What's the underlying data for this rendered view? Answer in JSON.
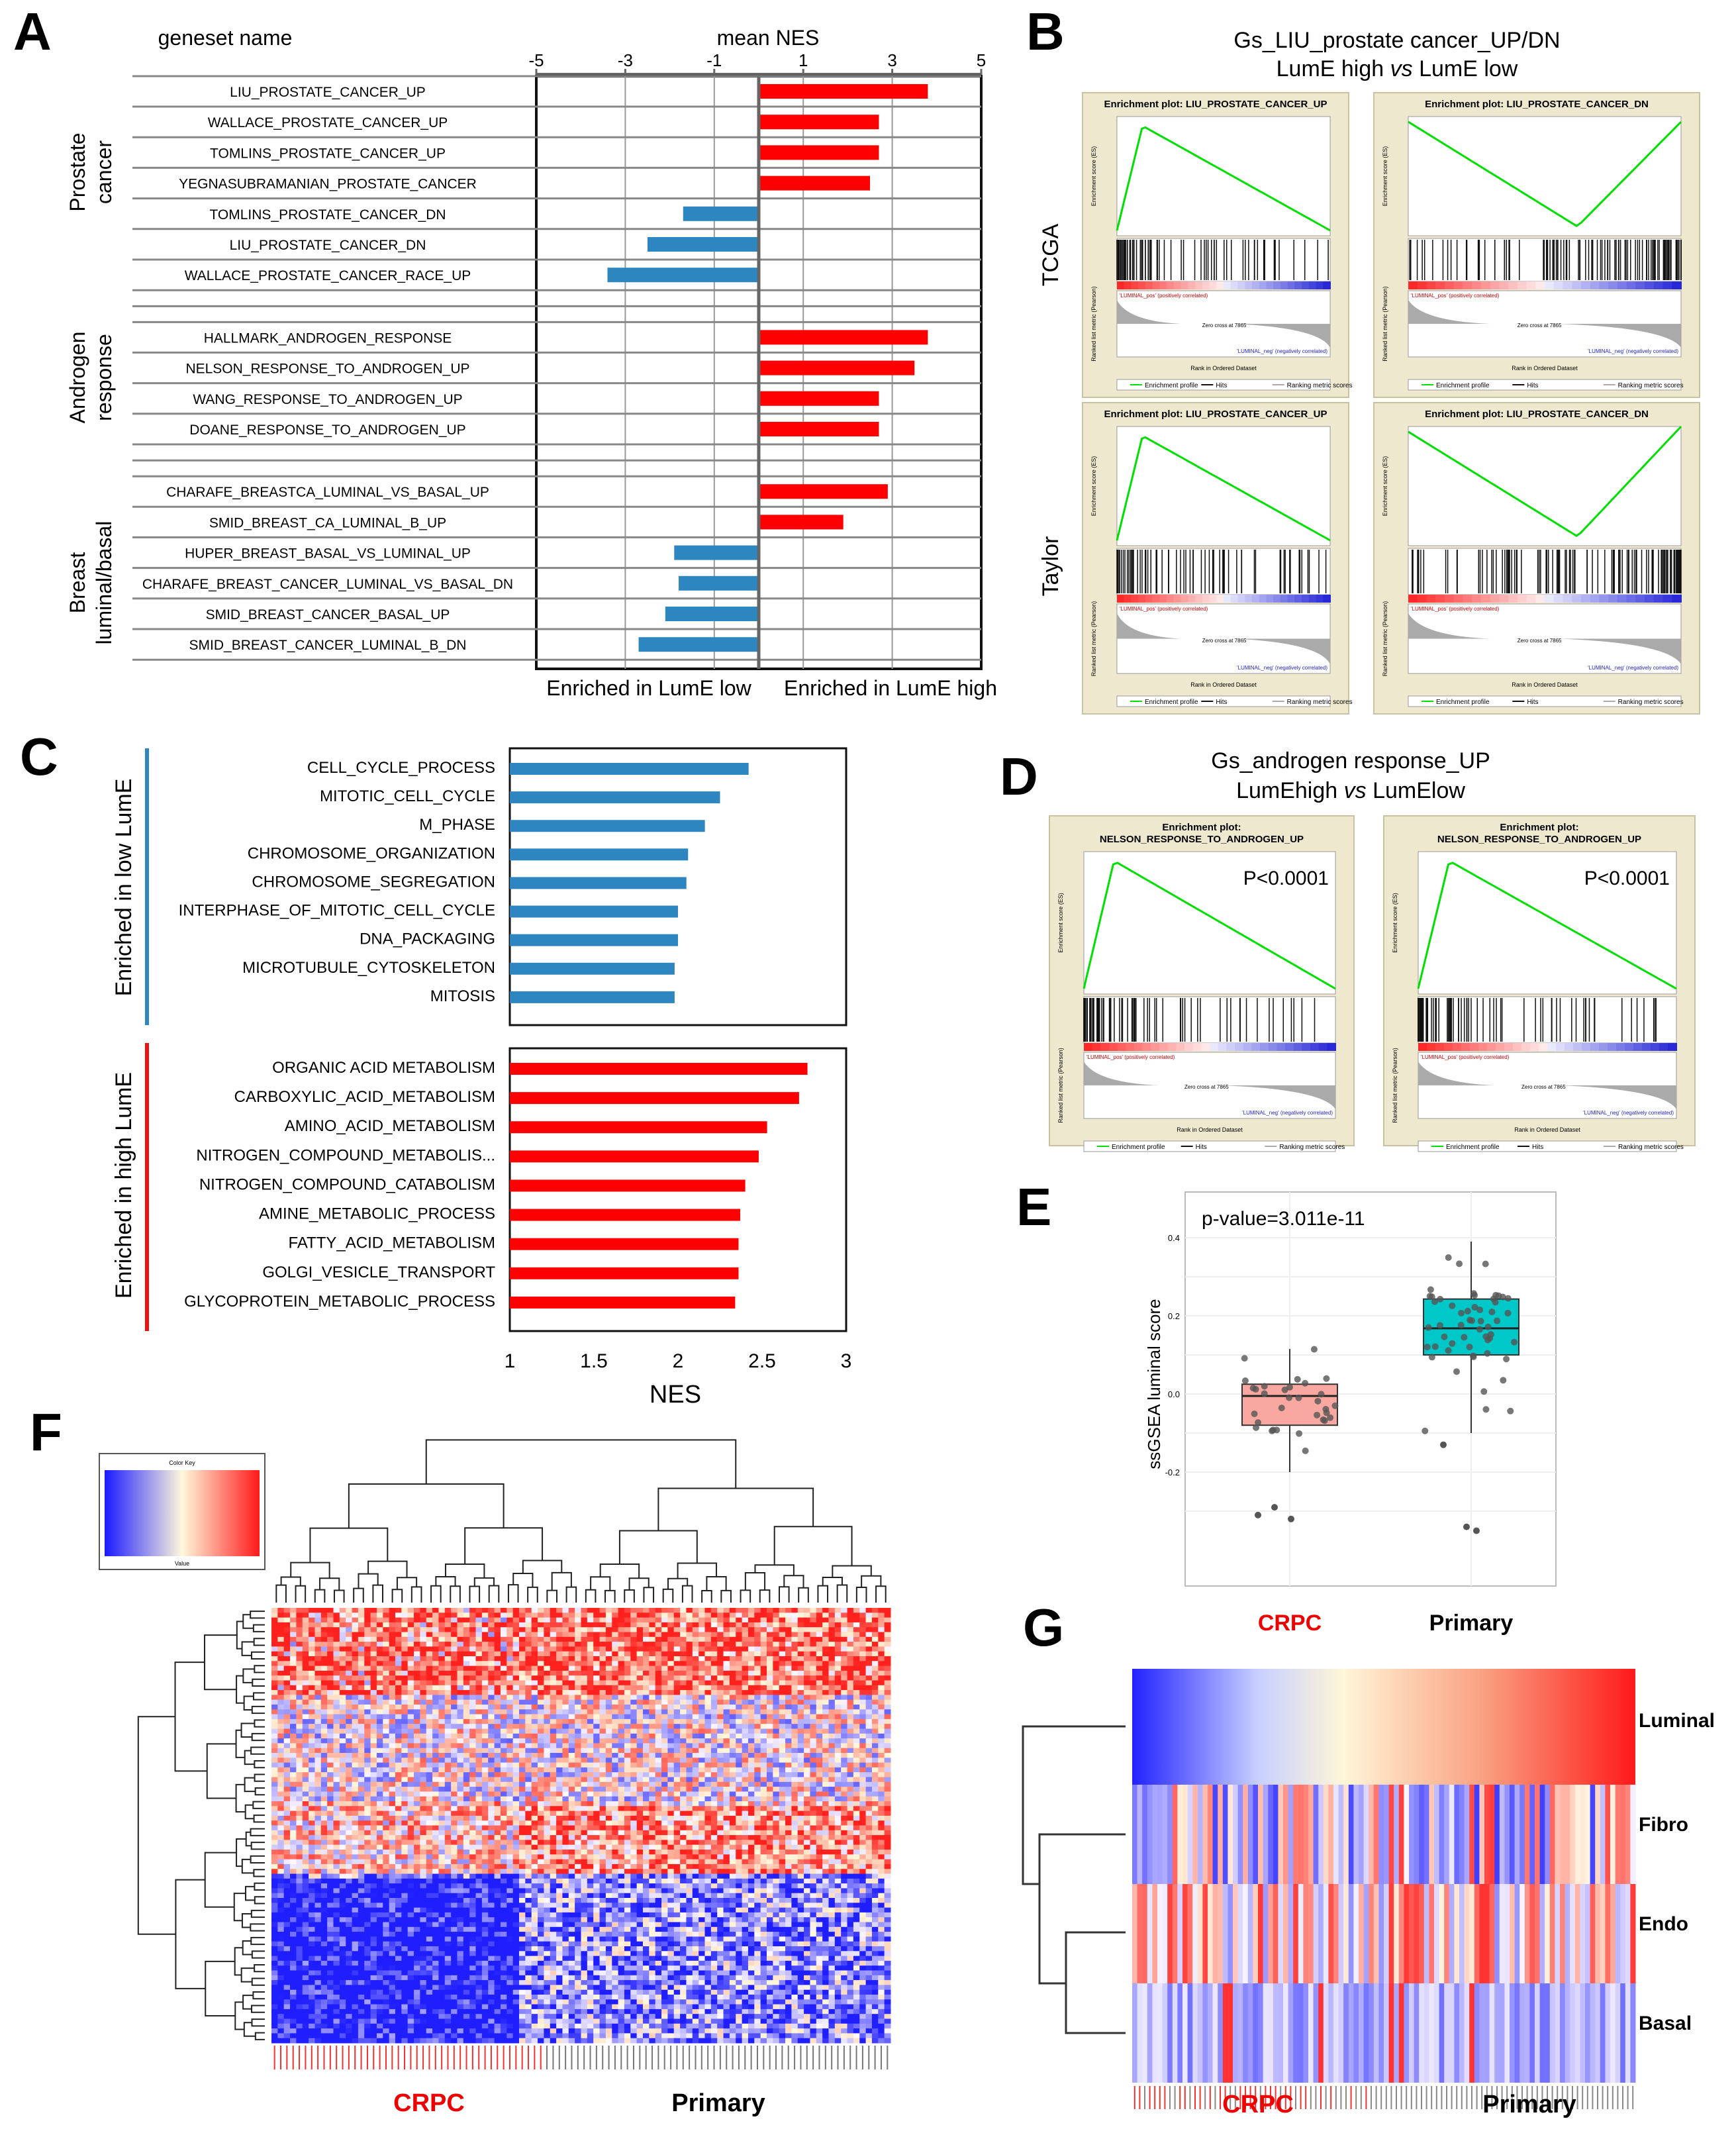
{
  "panel_letters": {
    "A": "A",
    "B": "B",
    "C": "C",
    "D": "D",
    "E": "E",
    "F": "F",
    "G": "G"
  },
  "colors": {
    "up": "#ff0000",
    "down": "#2e86c1",
    "green": "#00e000",
    "blue_hm": "#1f1fff",
    "red_hm": "#ff2020",
    "teal": "#00c8c8",
    "pink": "#f8a8a0",
    "crpc_red": "#ee0000"
  },
  "panelA": {
    "header_geneset": "geneset name",
    "header_nes": "mean NES",
    "group_labels": [
      {
        "line1": "Prostate",
        "line2": "cancer"
      },
      {
        "line1": "Androgen",
        "line2": "response"
      },
      {
        "line1": "Breast",
        "line2": "luminal/basal"
      }
    ],
    "foot_left": "Enriched in LumE low",
    "foot_right": "Enriched in LumE high"
  },
  "panelB": {
    "title1": "Gs_LIU_prostate cancer_UP/DN",
    "title2_a": "LumE high ",
    "title2_vs": "vs",
    "title2_b": " LumE low",
    "row_labels": [
      "TCGA",
      "Taylor"
    ],
    "plot_titles": [
      "Enrichment plot: LIU_PROSTATE_CANCER_UP",
      "Enrichment plot: LIU_PROSTATE_CANCER_DN"
    ],
    "legend": [
      "Enrichment profile",
      "Hits",
      "Ranking metric scores"
    ],
    "xlabel": "Rank in Ordered Dataset",
    "ylabel_es": "Enrichment score (ES)",
    "ylabel_rank": "Ranked list metric (Pearson)",
    "pos_label": "'LUMINAL_pos' (positively correlated)",
    "neg_label": "'LUMINAL_neg' (negatively correlated)",
    "zero_cross": "Zero cross at 7865"
  },
  "panelD": {
    "title1": "Gs_androgen response_UP",
    "title2_a": "LumEhigh ",
    "title2_vs": "vs",
    "title2_b": " LumElow",
    "plot_title_l1": "Enrichment plot:",
    "plot_title_l2": "NELSON_RESPONSE_TO_ANDROGEN_UP",
    "pvalue": "P<0.0001"
  },
  "panelC": {
    "group_low": "Enriched in low LumE",
    "group_high": "Enriched in high LumE",
    "xlabel": "NES"
  },
  "panelE": {
    "pvalue": "p-value=3.011e-11",
    "ylabel": "ssGSEA luminal score",
    "groups": [
      "CRPC",
      "Primary"
    ]
  },
  "panelF": {
    "key_title": "Color Key",
    "key_label": "Value",
    "groups": [
      "CRPC",
      "Primary"
    ]
  },
  "panelG": {
    "rows": [
      "Luminal",
      "Fibro",
      "Endo",
      "Basal"
    ],
    "groups": [
      "CRPC",
      "Primary"
    ]
  },
  "chart_data": [
    {
      "id": "A",
      "type": "bar",
      "orientation": "horizontal",
      "xlabel": "mean NES",
      "xlim": [
        -5,
        5
      ],
      "xticks": [
        -5,
        -3,
        -1,
        1,
        3,
        5
      ],
      "categories": [
        "LIU_PROSTATE_CANCER_UP",
        "WALLACE_PROSTATE_CANCER_UP",
        "TOMLINS_PROSTATE_CANCER_UP",
        "YEGNASUBRAMANIAN_PROSTATE_CANCER",
        "TOMLINS_PROSTATE_CANCER_DN",
        "LIU_PROSTATE_CANCER_DN",
        "WALLACE_PROSTATE_CANCER_RACE_UP",
        "HALLMARK_ANDROGEN_RESPONSE",
        "NELSON_RESPONSE_TO_ANDROGEN_UP",
        "WANG_RESPONSE_TO_ANDROGEN_UP",
        "DOANE_RESPONSE_TO_ANDROGEN_UP",
        "CHARAFE_BREASTCA_LUMINAL_VS_BASAL_UP",
        "SMID_BREAST_CA_LUMINAL_B_UP",
        "HUPER_BREAST_BASAL_VS_LUMINAL_UP",
        "CHARAFE_BREAST_CANCER_LUMINAL_VS_BASAL_DN",
        "SMID_BREAST_CANCER_BASAL_UP",
        "SMID_BREAST_CANCER_LUMINAL_B_DN"
      ],
      "values": [
        3.8,
        2.7,
        2.7,
        2.5,
        -1.7,
        -2.5,
        -3.4,
        3.8,
        3.5,
        2.7,
        2.7,
        2.9,
        1.9,
        -1.9,
        -1.8,
        -2.1,
        -2.7
      ],
      "groups": [
        0,
        0,
        0,
        0,
        0,
        0,
        0,
        1,
        1,
        1,
        1,
        2,
        2,
        2,
        2,
        2,
        2
      ]
    },
    {
      "id": "C",
      "type": "bar",
      "orientation": "horizontal",
      "xlabel": "NES",
      "xlim": [
        1,
        3
      ],
      "xticks": [
        1,
        1.5,
        2,
        2.5,
        3
      ],
      "series": [
        {
          "name": "Enriched in low LumE",
          "categories": [
            "CELL_CYCLE_PROCESS",
            "MITOTIC_CELL_CYCLE",
            "M_PHASE",
            "CHROMOSOME_ORGANIZATION",
            "CHROMOSOME_SEGREGATION",
            "INTERPHASE_OF_MITOTIC_CELL_CYCLE",
            "DNA_PACKAGING",
            "MICROTUBULE_CYTOSKELETON",
            "MITOSIS"
          ],
          "values": [
            2.42,
            2.25,
            2.16,
            2.06,
            2.05,
            2.0,
            2.0,
            1.98,
            1.98
          ]
        },
        {
          "name": "Enriched in high LumE",
          "categories": [
            "ORGANIC ACID METABOLISM",
            "CARBOXYLIC_ACID_METABOLISM",
            "AMINO_ACID_METABOLISM",
            "NITROGEN_COMPOUND_METABOLIS...",
            "NITROGEN_COMPOUND_CATABOLISM",
            "AMINE_METABOLIC_PROCESS",
            "FATTY_ACID_METABOLISM",
            "GOLGI_VESICLE_TRANSPORT",
            "GLYCOPROTEIN_METABOLIC_PROCESS"
          ],
          "values": [
            2.77,
            2.72,
            2.53,
            2.48,
            2.4,
            2.37,
            2.36,
            2.36,
            2.34
          ]
        }
      ]
    },
    {
      "id": "E",
      "type": "box",
      "ylabel": "ssGSEA luminal score",
      "ylim": [
        -0.4,
        0.4
      ],
      "yticks": [
        -0.2,
        0.0,
        0.2,
        0.4
      ],
      "categories": [
        "CRPC",
        "Primary"
      ],
      "boxes": [
        {
          "q1": -0.08,
          "median": -0.005,
          "q3": 0.025,
          "whisker_low": -0.2,
          "whisker_high": 0.115
        },
        {
          "q1": 0.1,
          "median": 0.168,
          "q3": 0.243,
          "whisker_low": -0.1,
          "whisker_high": 0.39
        }
      ]
    }
  ]
}
